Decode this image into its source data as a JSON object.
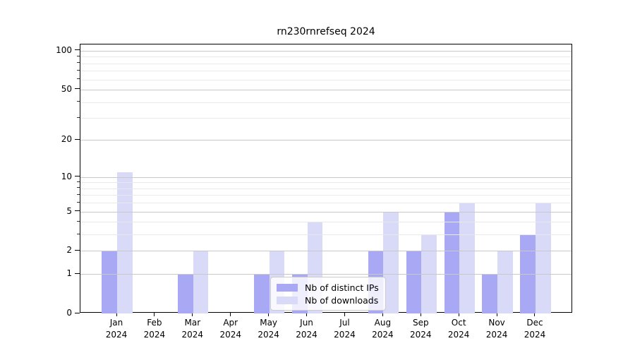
{
  "title": "rn230rnrefseq 2024",
  "chart_data": {
    "type": "bar",
    "categories": [
      "Jan",
      "Feb",
      "Mar",
      "Apr",
      "May",
      "Jun",
      "Jul",
      "Aug",
      "Sep",
      "Oct",
      "Nov",
      "Dec"
    ],
    "category_year": "2024",
    "series": [
      {
        "name": "Nb of distinct IPs",
        "color": "#a8a8f5",
        "values": [
          2,
          0,
          1,
          0,
          1,
          1,
          0,
          2,
          2,
          5,
          1,
          3
        ]
      },
      {
        "name": "Nb of downloads",
        "color": "#d9d9f8",
        "values": [
          11,
          0,
          2,
          0,
          2,
          4,
          0,
          5,
          3,
          6,
          2,
          6
        ]
      }
    ],
    "yscale": "log1p",
    "ylim": [
      0,
      111.7
    ],
    "y_major_ticks": [
      0,
      1,
      2,
      5,
      10,
      20,
      50,
      100
    ],
    "y_minor_ticks": [
      3,
      4,
      6,
      7,
      8,
      9,
      30,
      40,
      60,
      70,
      80,
      90
    ],
    "grid": true,
    "legend_position": "lower center"
  },
  "colors": {
    "major_grid": "#c8c8c8",
    "minor_grid": "#e9e9e9",
    "axis": "#000000",
    "background": "#ffffff"
  }
}
